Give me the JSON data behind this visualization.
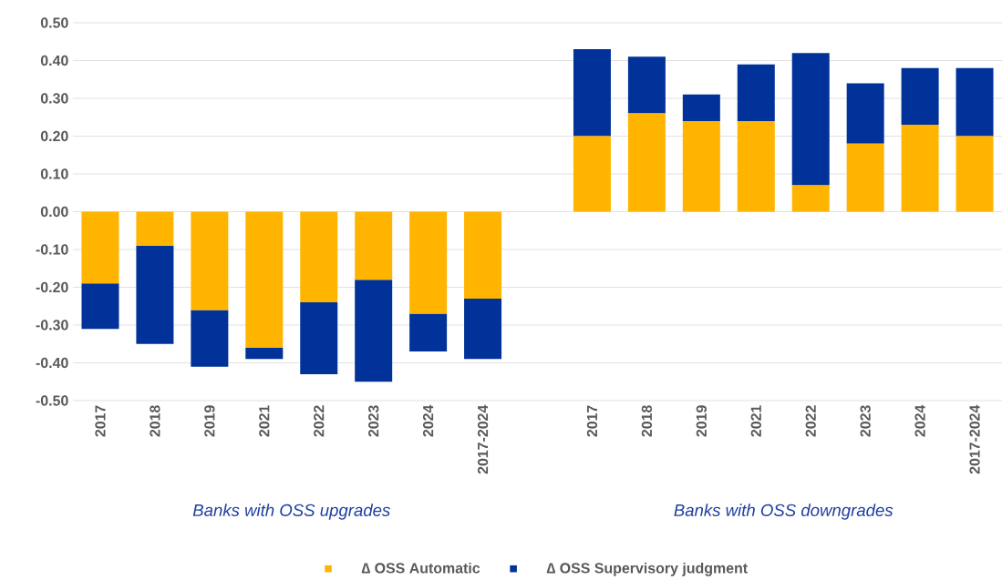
{
  "chart_data": {
    "type": "bar",
    "stacked": true,
    "categories": [
      "2017",
      "2018",
      "2019",
      "2021",
      "2022",
      "2023",
      "2024",
      "2017-2024",
      null,
      "2017",
      "2018",
      "2019",
      "2021",
      "2022",
      "2023",
      "2024",
      "2017-2024"
    ],
    "series": [
      {
        "name": "∆ OSS Automatic",
        "color": "#ffb400",
        "values": [
          -0.19,
          -0.09,
          -0.26,
          -0.36,
          -0.24,
          -0.18,
          -0.27,
          -0.23,
          null,
          0.2,
          0.26,
          0.24,
          0.24,
          0.07,
          0.18,
          0.23,
          0.2
        ]
      },
      {
        "name": "∆ OSS Supervisory judgment",
        "color": "#003299",
        "values": [
          -0.12,
          -0.26,
          -0.15,
          -0.03,
          -0.19,
          -0.27,
          -0.1,
          -0.16,
          null,
          0.23,
          0.15,
          0.07,
          0.15,
          0.35,
          0.16,
          0.15,
          0.18
        ]
      }
    ],
    "ylim": [
      -0.5,
      0.5
    ],
    "yticks": [
      {
        "value": -0.5,
        "label": "-0.50"
      },
      {
        "value": -0.4,
        "label": "-0.40"
      },
      {
        "value": -0.3,
        "label": "-0.30"
      },
      {
        "value": -0.2,
        "label": "-0.20"
      },
      {
        "value": -0.1,
        "label": "-0.10"
      },
      {
        "value": 0,
        "label": "0.00"
      },
      {
        "value": 0.1,
        "label": "0.10"
      },
      {
        "value": 0.2,
        "label": "0.20"
      },
      {
        "value": 0.3,
        "label": "0.30"
      },
      {
        "value": 0.4,
        "label": "0.40"
      },
      {
        "value": 0.5,
        "label": "0.50"
      }
    ],
    "annotations": [
      "Banks with OSS upgrades",
      "Banks with OSS downgrades"
    ],
    "grid": "y",
    "legend": "bottom"
  }
}
